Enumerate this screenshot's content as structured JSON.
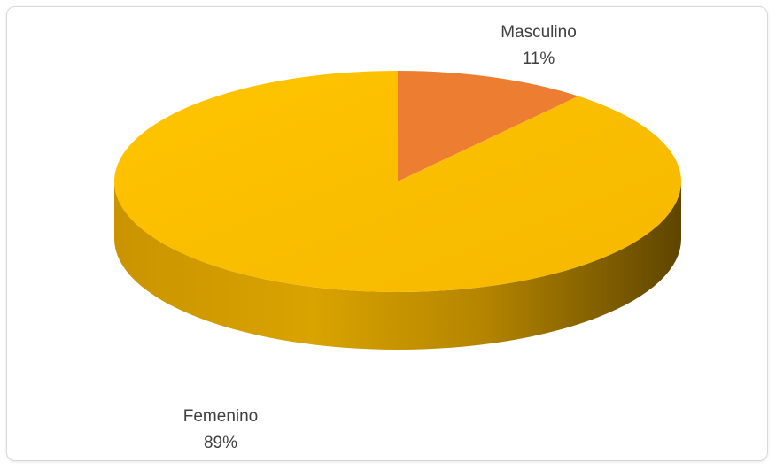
{
  "chart_data": {
    "type": "pie",
    "title": "",
    "categories": [
      "Masculino",
      "Femenino"
    ],
    "values": [
      11,
      89
    ],
    "labels": [
      {
        "name": "Masculino",
        "percent": "11%"
      },
      {
        "name": "Femenino",
        "percent": "89%"
      }
    ],
    "colors": [
      "#ED7D31",
      "#FFC000"
    ],
    "start_angle_deg": 0,
    "direction": "clockwise",
    "style": "3d",
    "legend": "none"
  }
}
